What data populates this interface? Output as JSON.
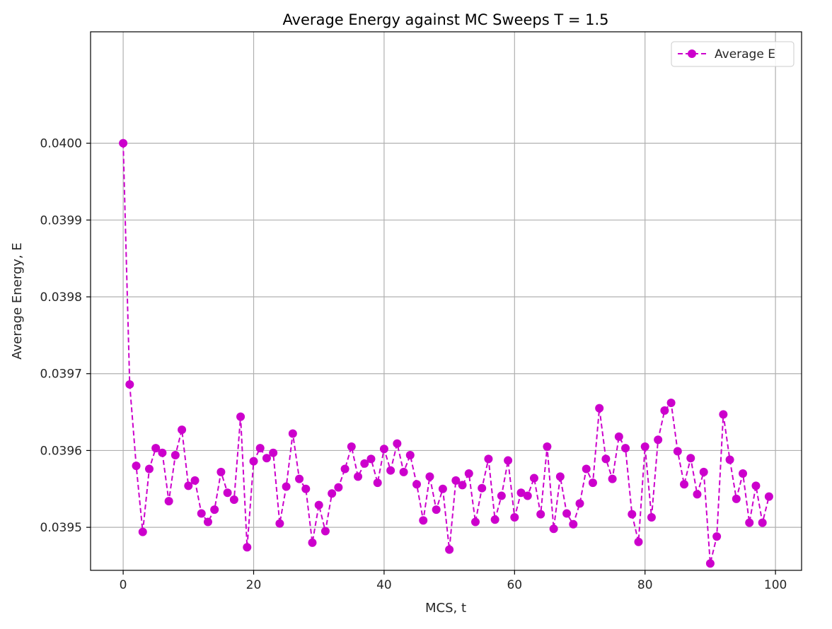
{
  "chart_data": {
    "type": "line",
    "title": "Average Energy against MC Sweeps T = 1.5",
    "xlabel": "MCS, t",
    "ylabel": "Average Energy, E",
    "xlim": [
      -5,
      104
    ],
    "ylim": [
      0.039444,
      0.040145
    ],
    "xticks": [
      0,
      20,
      40,
      60,
      80,
      100
    ],
    "xtick_labels": [
      "0",
      "20",
      "40",
      "60",
      "80",
      "100"
    ],
    "yticks": [
      0.0395,
      0.0396,
      0.0397,
      0.0398,
      0.0399,
      0.04
    ],
    "ytick_labels": [
      "0.0395",
      "0.0396",
      "0.0397",
      "0.0398",
      "0.0399",
      "0.0400"
    ],
    "grid": true,
    "legend_position": "top-right",
    "series": [
      {
        "name": "Average E",
        "color": "#cc00cc",
        "line_style": "dashed",
        "marker": "circle",
        "x": [
          0,
          1,
          2,
          3,
          4,
          5,
          6,
          7,
          8,
          9,
          10,
          11,
          12,
          13,
          14,
          15,
          16,
          17,
          18,
          19,
          20,
          21,
          22,
          23,
          24,
          25,
          26,
          27,
          28,
          29,
          30,
          31,
          32,
          33,
          34,
          35,
          36,
          37,
          38,
          39,
          40,
          41,
          42,
          43,
          44,
          45,
          46,
          47,
          48,
          49,
          50,
          51,
          52,
          53,
          54,
          55,
          56,
          57,
          58,
          59,
          60,
          61,
          62,
          63,
          64,
          65,
          66,
          67,
          68,
          69,
          70,
          71,
          72,
          73,
          74,
          75,
          76,
          77,
          78,
          79,
          80,
          81,
          82,
          83,
          84,
          85,
          86,
          87,
          88,
          89,
          90,
          91,
          92,
          93,
          94,
          95,
          96,
          97,
          98,
          99
        ],
        "y": [
          0.04,
          0.039686,
          0.03958,
          0.039494,
          0.039576,
          0.039603,
          0.039597,
          0.039534,
          0.039594,
          0.039627,
          0.039554,
          0.039561,
          0.039518,
          0.039507,
          0.039523,
          0.039572,
          0.039545,
          0.039536,
          0.039644,
          0.039474,
          0.039586,
          0.039603,
          0.03959,
          0.039597,
          0.039505,
          0.039553,
          0.039622,
          0.039563,
          0.03955,
          0.03948,
          0.039529,
          0.039495,
          0.039544,
          0.039552,
          0.039576,
          0.039605,
          0.039566,
          0.039583,
          0.039589,
          0.039558,
          0.039602,
          0.039574,
          0.039609,
          0.039572,
          0.039594,
          0.039556,
          0.039509,
          0.039566,
          0.039523,
          0.03955,
          0.039471,
          0.039561,
          0.039555,
          0.03957,
          0.039507,
          0.039551,
          0.039589,
          0.03951,
          0.039541,
          0.039587,
          0.039513,
          0.039545,
          0.039541,
          0.039564,
          0.039517,
          0.039605,
          0.039498,
          0.039566,
          0.039518,
          0.039504,
          0.039531,
          0.039576,
          0.039558,
          0.039655,
          0.039589,
          0.039563,
          0.039618,
          0.039603,
          0.039517,
          0.039481,
          0.039605,
          0.039513,
          0.039614,
          0.039652,
          0.039662,
          0.039599,
          0.039556,
          0.03959,
          0.039543,
          0.039572,
          0.039453,
          0.039488,
          0.039647,
          0.039588,
          0.039537,
          0.03957,
          0.039506,
          0.039554,
          0.039506,
          0.03954
        ]
      }
    ]
  }
}
